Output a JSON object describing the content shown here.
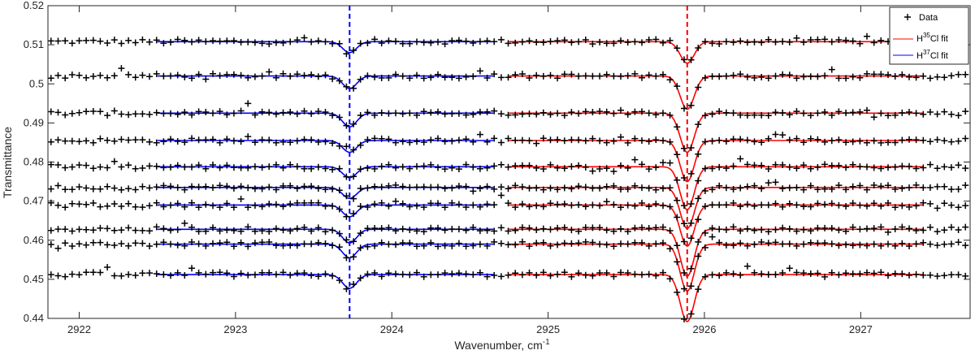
{
  "chart_data": {
    "type": "scatter",
    "title": "",
    "xlabel": "Wavenumber, cm",
    "xlabel_sup": "-1",
    "ylabel": "Transmittance",
    "xlim": [
      2921.8,
      2927.7
    ],
    "ylim": [
      0.44,
      0.52
    ],
    "xticks": [
      2922,
      2923,
      2924,
      2925,
      2926,
      2927
    ],
    "xtick_labels": [
      "2922",
      "2923",
      "2924",
      "2925",
      "2926",
      "2927"
    ],
    "yticks": [
      0.44,
      0.45,
      0.46,
      0.47,
      0.48,
      0.49,
      0.5,
      0.51,
      0.52
    ],
    "ytick_labels": [
      "0.44",
      "0.45",
      "0.46",
      "0.47",
      "0.48",
      "0.49",
      "0.5",
      "0.51",
      "0.52"
    ],
    "grid": false,
    "legend_position": "top-right",
    "legend": [
      {
        "label": "Data",
        "marker": "+",
        "color": "#000000"
      },
      {
        "label_parts": [
          "H",
          "35",
          "Cl fit"
        ],
        "color": "#ff0000"
      },
      {
        "label_parts": [
          "H",
          "37",
          "Cl fit"
        ],
        "color": "#0000ff"
      }
    ],
    "vlines": [
      {
        "x": 2923.73,
        "color": "#0000ff",
        "style": "dashed"
      },
      {
        "x": 2925.89,
        "color": "#ff0000",
        "style": "dashed"
      }
    ],
    "data_range": [
      2921.8,
      2927.7
    ],
    "data_step": 0.045,
    "h37_fit_range": [
      2922.5,
      2924.65
    ],
    "h35_fit_range": [
      2924.75,
      2927.4
    ],
    "spectra": [
      {
        "baseline": 0.5108,
        "h37_depth": 0.0028,
        "h35_depth": 0.0055
      },
      {
        "baseline": 0.502,
        "h37_depth": 0.0032,
        "h35_depth": 0.0085
      },
      {
        "baseline": 0.4925,
        "h37_depth": 0.0035,
        "h35_depth": 0.01
      },
      {
        "baseline": 0.4855,
        "h37_depth": 0.003,
        "h35_depth": 0.0105
      },
      {
        "baseline": 0.4788,
        "h37_depth": 0.0028,
        "h35_depth": 0.011
      },
      {
        "baseline": 0.4735,
        "h37_depth": 0.0028,
        "h35_depth": 0.0105
      },
      {
        "baseline": 0.469,
        "h37_depth": 0.003,
        "h35_depth": 0.0105
      },
      {
        "baseline": 0.4628,
        "h37_depth": 0.0035,
        "h35_depth": 0.012
      },
      {
        "baseline": 0.459,
        "h37_depth": 0.0035,
        "h35_depth": 0.012
      },
      {
        "baseline": 0.4512,
        "h37_depth": 0.0035,
        "h35_depth": 0.012
      }
    ]
  }
}
